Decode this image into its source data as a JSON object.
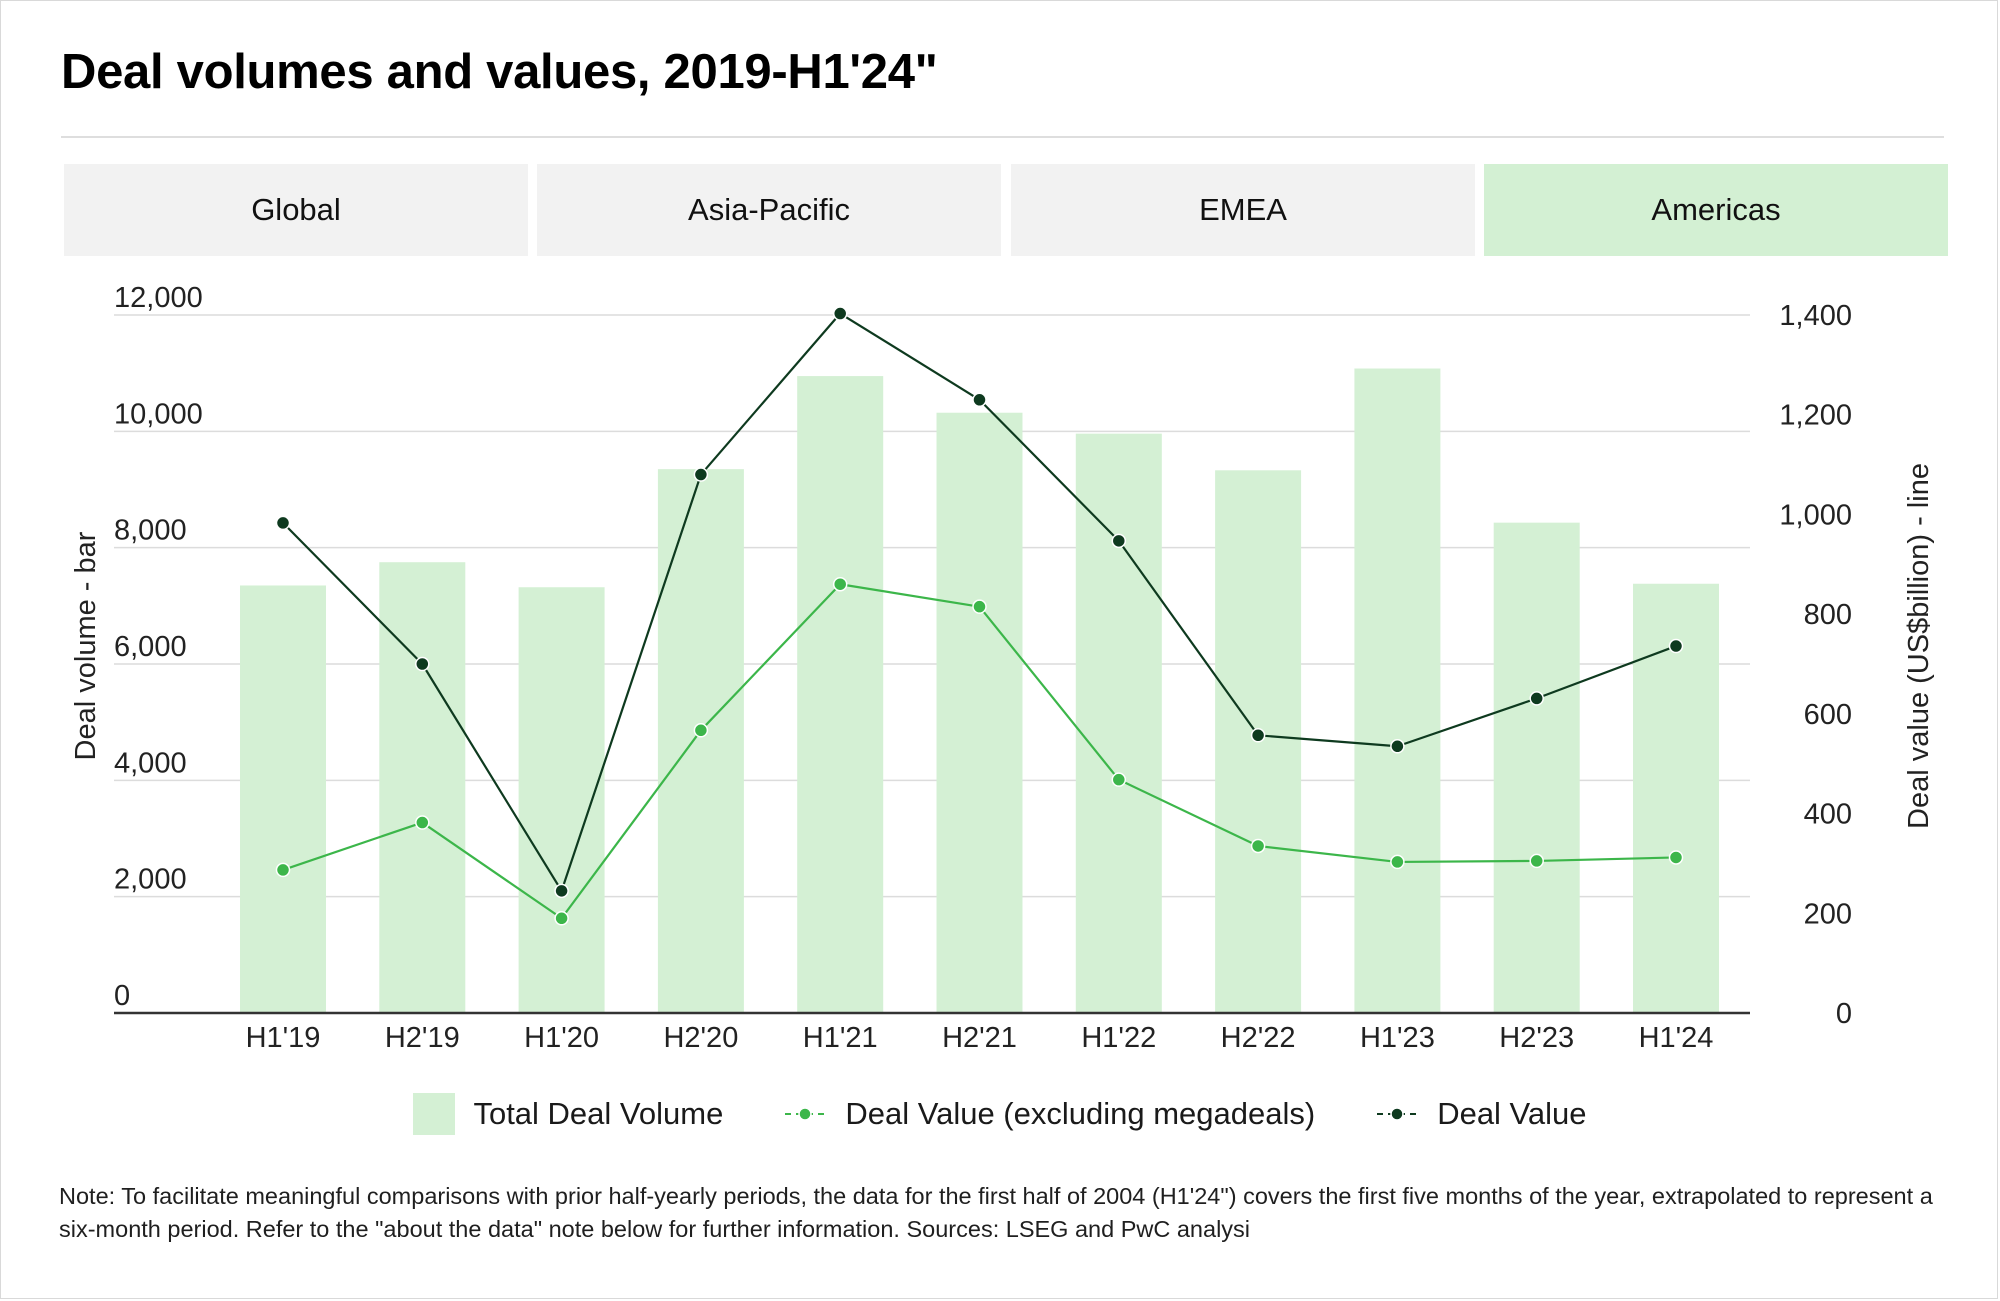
{
  "title": "Deal volumes and values, 2019-H1'24\"",
  "tabs": [
    {
      "label": "Global",
      "active": false
    },
    {
      "label": "Asia-Pacific",
      "active": false
    },
    {
      "label": "EMEA",
      "active": false
    },
    {
      "label": "Americas",
      "active": true
    }
  ],
  "colors": {
    "bar": "#d4f0d4",
    "deal_value_ex_megadeals": "#3cb64a",
    "deal_value": "#0e3a1f",
    "active_tab": "#d3f0d3",
    "inactive_tab": "#f2f2f2"
  },
  "chart_data": {
    "type": "bar",
    "categories": [
      "H1'19",
      "H2'19",
      "H1'20",
      "H2'20",
      "H1'21",
      "H2'21",
      "H1'22",
      "H2'22",
      "H1'23",
      "H2'23",
      "H1'24"
    ],
    "ylabel": "Deal volume - bar",
    "y2label": "Deal value (US$billion) - line",
    "ylim": [
      0,
      12000
    ],
    "y2lim": [
      0,
      1400
    ],
    "yticks": [
      "0",
      "2,000",
      "4,000",
      "6,000",
      "8,000",
      "10,000",
      "12,000"
    ],
    "y2ticks": [
      "0",
      "200",
      "400",
      "600",
      "800",
      "1,000",
      "1,200",
      "1,400"
    ],
    "grid": true,
    "legend_position": "bottom-center",
    "series": [
      {
        "name": "Total Deal Volume",
        "kind": "bar",
        "axis": "left",
        "values": [
          7350,
          7750,
          7320,
          9350,
          10950,
          10320,
          9960,
          9330,
          11080,
          8430,
          7380
        ]
      },
      {
        "name": "Deal Value (excluding megadeals)",
        "kind": "line",
        "axis": "right",
        "values": [
          287,
          382,
          190,
          567,
          860,
          815,
          468,
          335,
          303,
          305,
          312
        ]
      },
      {
        "name": "Deal Value",
        "kind": "line",
        "axis": "right",
        "values": [
          983,
          700,
          245,
          1080,
          1403,
          1230,
          947,
          557,
          535,
          631,
          736
        ]
      }
    ]
  },
  "note": "Note: To facilitate meaningful comparisons with prior half-yearly periods, the data for the first half of 2004 (H1'24\") covers the first five months of the year, extrapolated to represent a six-month period. Refer to the \"about the data\" note below for further information. Sources: LSEG and PwC analysi"
}
